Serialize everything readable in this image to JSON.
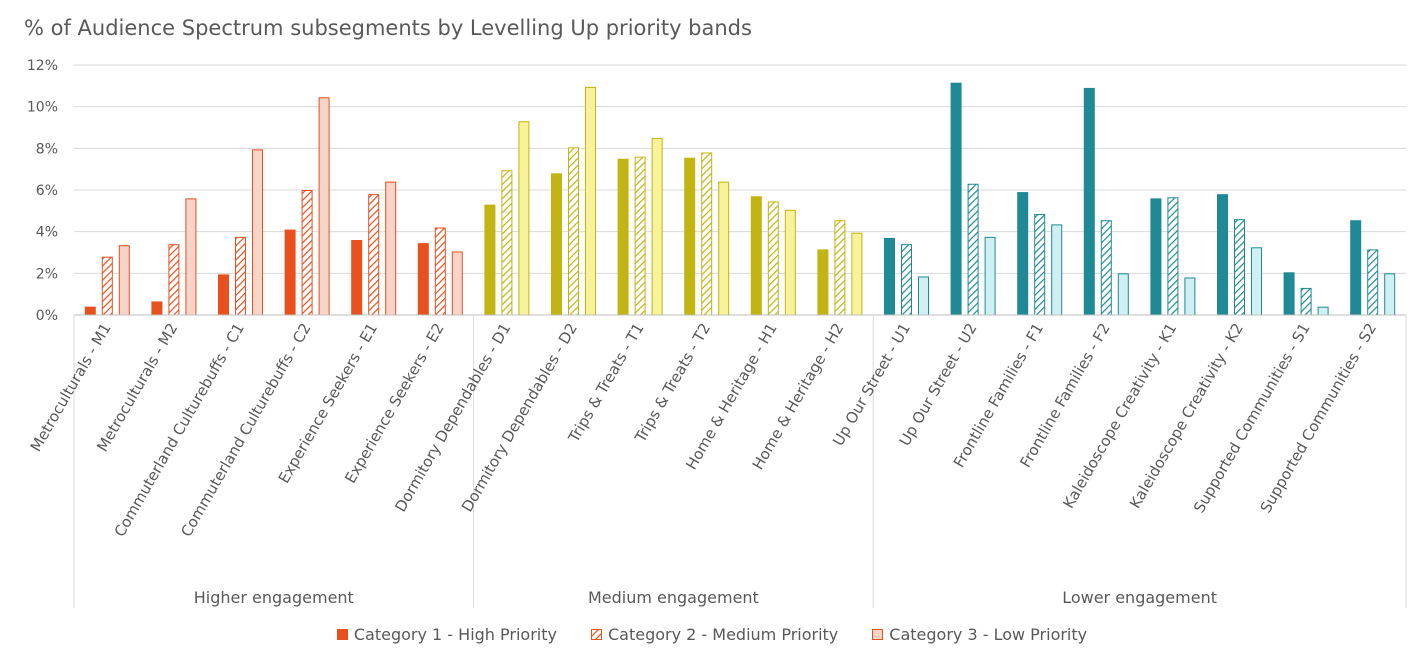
{
  "chart_data": {
    "type": "bar",
    "title": "% of Audience Spectrum subsegments by Levelling Up priority bands",
    "xlabel": "",
    "ylabel": "",
    "ylim": [
      0,
      12
    ],
    "yticks": [
      "0%",
      "2%",
      "4%",
      "6%",
      "8%",
      "10%",
      "12%"
    ],
    "grid": true,
    "legend_position": "bottom",
    "categories": [
      "Metroculturals - M1",
      "Metroculturals - M2",
      "Commuterland Culturebuffs - C1",
      "Commuterland Culturebuffs - C2",
      "Experience Seekers - E1",
      "Experience Seekers - E2",
      "Dormitory Dependables - D1",
      "Dormitory Dependables - D2",
      "Trips & Treats - T1",
      "Trips & Treats - T2",
      "Home & Heritage - H1",
      "Home & Heritage - H2",
      "Up Our Street - U1",
      "Up Our Street - U2",
      "Frontline Families - F1",
      "Frontline Families - F2",
      "Kaleidoscope Creativity - K1",
      "Kaleidoscope Creativity - K2",
      "Supported Communities - S1",
      "Supported Communities - S2"
    ],
    "groups": [
      {
        "label": "Higher engagement",
        "start": 0,
        "end": 5,
        "color": "#E8501E",
        "light": "#F8D3C8"
      },
      {
        "label": "Medium engagement",
        "start": 6,
        "end": 11,
        "color": "#C2B412",
        "light": "#F8F39A"
      },
      {
        "label": "Lower engagement",
        "start": 12,
        "end": 19,
        "color": "#1F8A96",
        "light": "#CFEFF2"
      }
    ],
    "series": [
      {
        "name": "Category 1 - High Priority",
        "values": [
          0.4,
          0.65,
          1.95,
          4.1,
          3.6,
          3.45,
          5.3,
          6.8,
          7.5,
          7.55,
          5.7,
          3.15,
          3.7,
          11.15,
          5.9,
          10.9,
          5.6,
          5.8,
          2.05,
          4.55
        ]
      },
      {
        "name": "Category 2 - Medium Priority",
        "values": [
          2.8,
          3.4,
          3.75,
          6.0,
          5.8,
          4.2,
          6.95,
          8.05,
          7.6,
          7.8,
          5.45,
          4.55,
          3.4,
          6.3,
          4.85,
          4.55,
          5.65,
          4.6,
          1.3,
          3.15
        ]
      },
      {
        "name": "Category 3 - Low Priority",
        "values": [
          3.35,
          5.6,
          7.95,
          10.45,
          6.4,
          3.05,
          9.3,
          10.95,
          8.5,
          6.4,
          5.05,
          3.95,
          1.85,
          3.75,
          4.35,
          2.0,
          1.8,
          3.25,
          0.4,
          2.0
        ]
      }
    ]
  }
}
